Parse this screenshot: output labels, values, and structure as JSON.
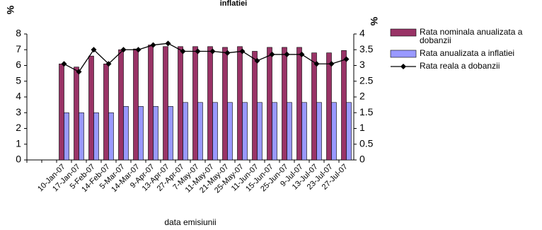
{
  "chart_data": {
    "type": "bar-line",
    "title": "inflatiei",
    "y_label": "%",
    "y2_label": "%",
    "x_label": "data emisiunii",
    "categories": [
      null,
      null,
      "10-Jan-07",
      "17-Jan-07",
      "5-Feb-07",
      "14-Feb-07",
      "5-Mar-07",
      "14-Mar-07",
      "9-Apr-07",
      "13-Apr-07",
      "27-Apr-07",
      "7-May-07",
      "11-May-07",
      "21-May-07",
      "25-May-07",
      "11-Jun-07",
      "15-Jun-07",
      "25-Jun-07",
      "9-Jul-07",
      "13-Jul-07",
      "23-Jul-07",
      "27-Jul-07"
    ],
    "series": [
      {
        "name": "Rata nominala anualizata a dobanzii",
        "color": "#993366",
        "kind": "bar",
        "values": [
          null,
          null,
          6.1,
          5.9,
          6.6,
          6.1,
          7.0,
          7.05,
          7.3,
          7.2,
          7.2,
          7.2,
          7.2,
          7.15,
          7.2,
          6.9,
          7.15,
          7.15,
          7.15,
          6.8,
          6.8,
          6.95
        ]
      },
      {
        "name": "Rata anualizata a inflatiei",
        "color": "#9999ff",
        "kind": "bar",
        "values": [
          null,
          null,
          3,
          3,
          3,
          3,
          3.4,
          3.4,
          3.4,
          3.4,
          3.65,
          3.65,
          3.65,
          3.65,
          3.65,
          3.65,
          3.65,
          3.65,
          3.65,
          3.65,
          3.65,
          3.65
        ]
      },
      {
        "name": "Rata reala a dobanzii",
        "color": "#000000",
        "kind": "line",
        "axis": "y2",
        "values": [
          null,
          null,
          3.05,
          2.8,
          3.5,
          3.05,
          3.5,
          3.5,
          3.65,
          3.7,
          3.45,
          3.45,
          3.45,
          3.4,
          3.45,
          3.15,
          3.35,
          3.35,
          3.35,
          3.05,
          3.05,
          3.2
        ]
      }
    ],
    "ylim": [
      0,
      8
    ],
    "yticks": [
      0,
      1,
      2,
      3,
      4,
      5,
      6,
      7,
      8
    ],
    "y2lim": [
      0,
      4
    ],
    "y2ticks": [
      0,
      0.5,
      1,
      1.5,
      2,
      2.5,
      3,
      3.5,
      4
    ],
    "legend": "right"
  }
}
